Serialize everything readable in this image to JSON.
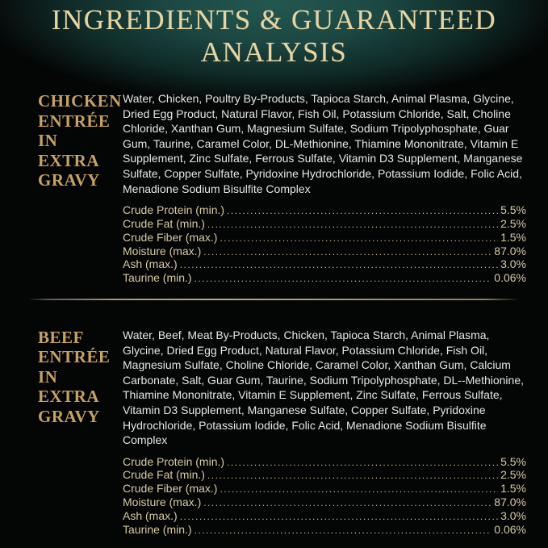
{
  "banner": {
    "title": "INGREDIENTS & GUARANTEED ANALYSIS"
  },
  "colors": {
    "banner_glow_teal": "#1e4a46",
    "banner_title_gold": "#e7d4a1",
    "heading_gold": "#c7a163",
    "ingredients_text": "#e6e6e6",
    "analysis_text": "#d8c9a2",
    "background": "#040505",
    "divider_gold": "#a89e85"
  },
  "sections": [
    {
      "id": "chicken",
      "heading_lines": [
        "CHICKEN",
        "ENTRÉE",
        "IN EXTRA",
        "GRAVY"
      ],
      "ingredients": "Water, Chicken, Poultry By-Products, Tapioca Starch, Animal Plasma, Glycine, Dried Egg Product, Natural Flavor, Fish Oil, Potassium Chloride, Salt, Choline Chloride, Xanthan Gum, Magnesium Sulfate, Sodium Tripolyphosphate, Guar Gum, Taurine, Caramel Color, DL-Methionine, Thiamine Mononitrate, Vitamin E Supplement, Zinc Sulfate, Ferrous Sulfate, Vitamin D3 Supplement, Manganese Sulfate, Copper Sulfate, Pyridoxine Hydrochloride, Potassium Iodide, Folic Acid, Menadione Sodium Bisulfite Complex",
      "analysis": [
        {
          "label": "Crude Protein (min.)",
          "value": "5.5%"
        },
        {
          "label": "Crude Fat (min.)",
          "value": "2.5%"
        },
        {
          "label": "Crude Fiber (max.)",
          "value": "1.5%"
        },
        {
          "label": "Moisture (max.)",
          "value": "87.0%"
        },
        {
          "label": "Ash (max.)",
          "value": "3.0%"
        },
        {
          "label": "Taurine (min.)",
          "value": "0.06%"
        }
      ]
    },
    {
      "id": "beef",
      "heading_lines": [
        "BEEF",
        "ENTRÉE",
        "IN EXTRA",
        "GRAVY"
      ],
      "ingredients": "Water, Beef, Meat By-Products, Chicken, Tapioca Starch, Animal Plasma, Glycine, Dried Egg Product, Natural Flavor, Potassium Chloride, Fish Oil, Magnesium Sulfate, Choline Chloride, Caramel Color, Xanthan Gum, Calcium Carbonate, Salt, Guar Gum, Taurine, Sodium Tripolyphosphate, DL--Methionine, Thiamine Mononitrate, Vitamin E Supplement, Zinc Sulfate, Ferrous Sulfate, Vitamin D3 Supplement, Manganese Sulfate, Copper Sulfate, Pyridoxine Hydrochloride, Potassium Iodide, Folic Acid, Menadione Sodium Bisulfite Complex",
      "analysis": [
        {
          "label": "Crude Protein (min.)",
          "value": "5.5%"
        },
        {
          "label": "Crude Fat (min.)",
          "value": "2.5%"
        },
        {
          "label": "Crude Fiber (max.)",
          "value": "1.5%"
        },
        {
          "label": "Moisture (max.)",
          "value": "87.0%"
        },
        {
          "label": "Ash (max.)",
          "value": "3.0%"
        },
        {
          "label": "Taurine (min.)",
          "value": "0.06%"
        }
      ]
    }
  ]
}
